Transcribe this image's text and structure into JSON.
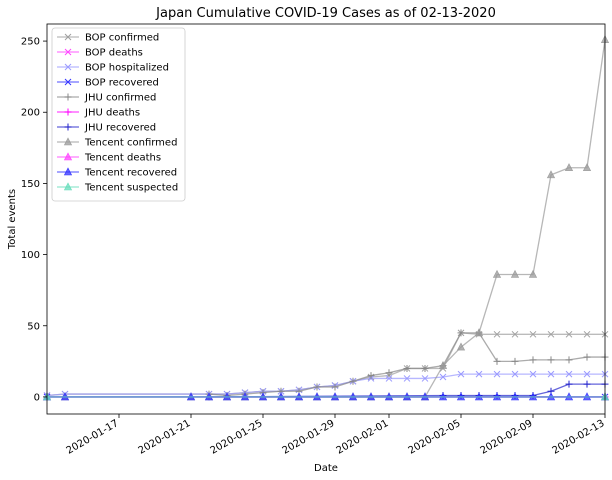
{
  "chart_data": {
    "type": "line",
    "title": "Japan Cumulative COVID-19 Cases as of 02-13-2020",
    "xlabel": "Date",
    "ylabel": "Total events",
    "ylim": [
      -12,
      262
    ],
    "xlim": [
      "2020-01-13",
      "2020-02-13"
    ],
    "yticks": [
      0,
      50,
      100,
      150,
      200,
      250
    ],
    "xticks": [
      "2020-01-17",
      "2020-01-21",
      "2020-01-25",
      "2020-01-29",
      "2020-02-01",
      "2020-02-05",
      "2020-02-09",
      "2020-02-13"
    ],
    "grid": false,
    "legend_position": "top-left",
    "series": [
      {
        "name": "BOP confirmed",
        "color": "#9e9e9e",
        "marker": "x",
        "x": [
          "2020-01-13",
          "2020-01-14",
          "2020-01-22",
          "2020-01-23",
          "2020-01-24",
          "2020-01-25",
          "2020-01-26",
          "2020-01-27",
          "2020-01-28",
          "2020-01-29",
          "2020-01-30",
          "2020-01-31",
          "2020-02-01",
          "2020-02-02",
          "2020-02-03",
          "2020-02-04",
          "2020-02-05",
          "2020-02-06",
          "2020-02-07",
          "2020-02-08",
          "2020-02-09",
          "2020-02-10",
          "2020-02-11",
          "2020-02-12",
          "2020-02-13"
        ],
        "y": [
          1,
          2,
          2,
          2,
          3,
          4,
          4,
          5,
          7,
          8,
          11,
          14,
          15,
          20,
          20,
          20,
          45,
          44,
          44,
          44,
          44,
          44,
          44,
          44,
          44
        ]
      },
      {
        "name": "BOP deaths",
        "color": "#ff44ff",
        "marker": "x",
        "x": [
          "2020-01-13",
          "2020-02-13"
        ],
        "y": [
          0,
          0
        ]
      },
      {
        "name": "BOP hospitalized",
        "color": "#9999ff",
        "marker": "x",
        "x": [
          "2020-01-13",
          "2020-01-14",
          "2020-01-22",
          "2020-01-23",
          "2020-01-24",
          "2020-01-25",
          "2020-01-26",
          "2020-01-27",
          "2020-01-28",
          "2020-01-29",
          "2020-01-30",
          "2020-01-31",
          "2020-02-01",
          "2020-02-02",
          "2020-02-03",
          "2020-02-04",
          "2020-02-05",
          "2020-02-06",
          "2020-02-07",
          "2020-02-08",
          "2020-02-09",
          "2020-02-10",
          "2020-02-11",
          "2020-02-12",
          "2020-02-13"
        ],
        "y": [
          1,
          2,
          2,
          2,
          3,
          4,
          4,
          5,
          7,
          8,
          11,
          13,
          13,
          13,
          13,
          14,
          16,
          16,
          16,
          16,
          16,
          16,
          16,
          16,
          16
        ]
      },
      {
        "name": "BOP recovered",
        "color": "#3333ff",
        "marker": "x",
        "x": [
          "2020-01-13",
          "2020-02-13"
        ],
        "y": [
          0,
          0
        ]
      },
      {
        "name": "JHU confirmed",
        "color": "#888888",
        "marker": "+",
        "x": [
          "2020-01-22",
          "2020-01-23",
          "2020-01-24",
          "2020-01-25",
          "2020-01-26",
          "2020-01-27",
          "2020-01-28",
          "2020-01-29",
          "2020-01-30",
          "2020-01-31",
          "2020-02-01",
          "2020-02-02",
          "2020-02-03",
          "2020-02-04",
          "2020-02-05",
          "2020-02-06",
          "2020-02-07",
          "2020-02-08",
          "2020-02-09",
          "2020-02-10",
          "2020-02-11",
          "2020-02-12",
          "2020-02-13"
        ],
        "y": [
          2,
          1,
          2,
          3,
          4,
          4,
          7,
          7,
          11,
          15,
          17,
          20,
          20,
          22,
          45,
          45,
          25,
          25,
          26,
          26,
          26,
          28,
          28
        ]
      },
      {
        "name": "JHU deaths",
        "color": "#ff00ff",
        "marker": "+",
        "x": [
          "2020-01-22",
          "2020-02-13"
        ],
        "y": [
          0,
          0
        ]
      },
      {
        "name": "JHU recovered",
        "color": "#2222cc",
        "marker": "+",
        "x": [
          "2020-01-22",
          "2020-02-04",
          "2020-02-05",
          "2020-02-06",
          "2020-02-07",
          "2020-02-08",
          "2020-02-09",
          "2020-02-10",
          "2020-02-11",
          "2020-02-12",
          "2020-02-13"
        ],
        "y": [
          0,
          1,
          1,
          1,
          1,
          1,
          1,
          4,
          9,
          9,
          9
        ]
      },
      {
        "name": "Tencent confirmed",
        "color": "#999999",
        "marker": "triangle",
        "x": [
          "2020-01-13",
          "2020-01-14",
          "2020-01-21",
          "2020-01-22",
          "2020-01-23",
          "2020-01-24",
          "2020-01-25",
          "2020-01-26",
          "2020-01-27",
          "2020-01-28",
          "2020-01-29",
          "2020-01-30",
          "2020-01-31",
          "2020-02-01",
          "2020-02-02",
          "2020-02-03",
          "2020-02-04",
          "2020-02-05",
          "2020-02-06",
          "2020-02-07",
          "2020-02-08",
          "2020-02-09",
          "2020-02-10",
          "2020-02-11",
          "2020-02-12",
          "2020-02-13"
        ],
        "y": [
          0,
          0,
          0,
          0,
          0,
          0,
          0,
          0,
          0,
          0,
          0,
          0,
          0,
          0,
          0,
          0,
          22,
          35,
          45,
          86,
          86,
          86,
          156,
          161,
          161,
          251
        ]
      },
      {
        "name": "Tencent deaths",
        "color": "#ff44ff",
        "marker": "triangle",
        "x": [
          "2020-01-13",
          "2020-02-13"
        ],
        "y": [
          0,
          0
        ]
      },
      {
        "name": "Tencent recovered",
        "color": "#3333ff",
        "marker": "triangle",
        "x": [
          "2020-01-13",
          "2020-01-14",
          "2020-01-21",
          "2020-01-22",
          "2020-01-23",
          "2020-01-24",
          "2020-01-25",
          "2020-01-26",
          "2020-01-27",
          "2020-01-28",
          "2020-01-29",
          "2020-01-30",
          "2020-01-31",
          "2020-02-01",
          "2020-02-02",
          "2020-02-03",
          "2020-02-04",
          "2020-02-05",
          "2020-02-06",
          "2020-02-07",
          "2020-02-08",
          "2020-02-09",
          "2020-02-10",
          "2020-02-11",
          "2020-02-12",
          "2020-02-13"
        ],
        "y": [
          0,
          0,
          0,
          0,
          0,
          0,
          0,
          0,
          0,
          0,
          0,
          0,
          0,
          0,
          0,
          0,
          0,
          0,
          0,
          0,
          0,
          0,
          0,
          0,
          0,
          0
        ]
      },
      {
        "name": "Tencent suspected",
        "color": "#66ddbb",
        "marker": "triangle",
        "x": [
          "2020-01-13",
          "2020-02-13"
        ],
        "y": [
          0,
          0
        ]
      }
    ]
  }
}
